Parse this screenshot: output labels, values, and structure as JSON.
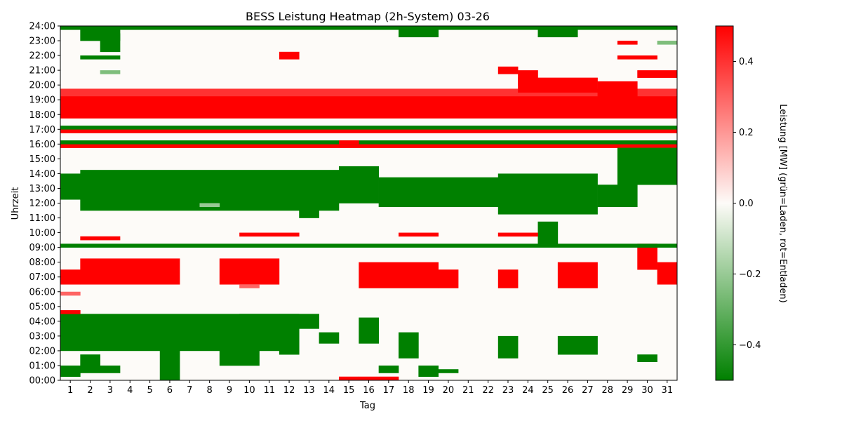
{
  "chart_data": {
    "type": "heatmap",
    "title": "BESS Leistung Heatmap (2h-System) 03-26",
    "xlabel": "Tag",
    "ylabel": "Uhrzeit",
    "colorbar_label": "Leistung [MW] (grün=Laden, rot=Entladen)",
    "x_categories": [
      "1",
      "2",
      "3",
      "4",
      "5",
      "6",
      "7",
      "8",
      "9",
      "10",
      "11",
      "12",
      "13",
      "14",
      "15",
      "16",
      "17",
      "18",
      "19",
      "20",
      "21",
      "22",
      "23",
      "24",
      "25",
      "26",
      "27",
      "28",
      "29",
      "30",
      "31"
    ],
    "y_ticks": [
      "00:00",
      "01:00",
      "02:00",
      "03:00",
      "04:00",
      "05:00",
      "06:00",
      "07:00",
      "08:00",
      "09:00",
      "10:00",
      "11:00",
      "12:00",
      "13:00",
      "14:00",
      "15:00",
      "16:00",
      "17:00",
      "18:00",
      "19:00",
      "20:00",
      "21:00",
      "22:00",
      "23:00",
      "24:00"
    ],
    "y_range_hours": [
      0,
      24
    ],
    "color_range": [
      -0.5,
      0.5
    ],
    "colorbar_ticks": [
      0.4,
      0.2,
      0.0,
      -0.2,
      -0.4
    ],
    "colorbar_tick_labels": [
      "0.4",
      "0.2",
      "0.0",
      "−0.2",
      "−0.4"
    ],
    "colors": {
      "charge": "#008000",
      "zero": "#fdfbf8",
      "discharge": "#ff0000"
    },
    "grid": false,
    "resolution_minutes": 15,
    "blocks": [
      {
        "d": [
          1,
          31
        ],
        "h": [
          17.75,
          19.25
        ],
        "v": 0.5
      },
      {
        "d": [
          2,
          6
        ],
        "h": [
          6.5,
          8.25
        ],
        "v": 0.5
      },
      {
        "d": [
          9,
          11
        ],
        "h": [
          6.5,
          8.25
        ],
        "v": 0.5
      },
      {
        "d": [
          16,
          19
        ],
        "h": [
          6.25,
          8.0
        ],
        "v": 0.5
      },
      {
        "d": [
          20,
          20
        ],
        "h": [
          6.25,
          7.5
        ],
        "v": 0.5
      },
      {
        "d": [
          1,
          1
        ],
        "h": [
          6.5,
          7.5
        ],
        "v": 0.5
      },
      {
        "d": [
          23,
          23
        ],
        "h": [
          6.25,
          7.5
        ],
        "v": 0.5
      },
      {
        "d": [
          26,
          27
        ],
        "h": [
          6.25,
          8.0
        ],
        "v": 0.5
      },
      {
        "d": [
          30,
          30
        ],
        "h": [
          7.5,
          9.25
        ],
        "v": 0.5
      },
      {
        "d": [
          31,
          31
        ],
        "h": [
          6.5,
          8.0
        ],
        "v": 0.5
      },
      {
        "d": [
          1,
          31
        ],
        "h": [
          15.75,
          16.0
        ],
        "v": 0.5
      },
      {
        "d": [
          1,
          31
        ],
        "h": [
          16.75,
          17.0
        ],
        "v": 0.5
      },
      {
        "d": [
          1,
          31
        ],
        "h": [
          19.25,
          19.75
        ],
        "v": 0.4
      },
      {
        "d": [
          1,
          12
        ],
        "h": [
          2.0,
          4.5
        ],
        "v": -0.5
      },
      {
        "d": [
          1,
          1
        ],
        "h": [
          12.25,
          14.0
        ],
        "v": -0.5
      },
      {
        "d": [
          2,
          14
        ],
        "h": [
          11.5,
          14.25
        ],
        "v": -0.5
      },
      {
        "d": [
          15,
          16
        ],
        "h": [
          12.0,
          14.5
        ],
        "v": -0.5
      },
      {
        "d": [
          17,
          22
        ],
        "h": [
          11.75,
          13.75
        ],
        "v": -0.5
      },
      {
        "d": [
          23,
          27
        ],
        "h": [
          11.25,
          14.0
        ],
        "v": -0.5
      },
      {
        "d": [
          28,
          29
        ],
        "h": [
          11.75,
          13.25
        ],
        "v": -0.5
      },
      {
        "d": [
          29,
          31
        ],
        "h": [
          13.25,
          15.75
        ],
        "v": -0.5
      },
      {
        "d": [
          1,
          31
        ],
        "h": [
          9.0,
          9.25
        ],
        "v": -0.5
      },
      {
        "d": [
          1,
          31
        ],
        "h": [
          16.0,
          16.25
        ],
        "v": -0.5
      },
      {
        "d": [
          1,
          31
        ],
        "h": [
          17.0,
          17.25
        ],
        "v": -0.5
      },
      {
        "d": [
          1,
          31
        ],
        "h": [
          23.75,
          24.0
        ],
        "v": -0.5
      },
      {
        "d": [
          2,
          3
        ],
        "h": [
          23.0,
          23.75
        ],
        "v": -0.5
      },
      {
        "d": [
          25,
          26
        ],
        "h": [
          23.25,
          24.0
        ],
        "v": -0.5
      },
      {
        "d": [
          18,
          19
        ],
        "h": [
          23.25,
          24.0
        ],
        "v": -0.5
      },
      {
        "d": [
          6,
          6
        ],
        "h": [
          0.0,
          2.0
        ],
        "v": -0.5
      },
      {
        "d": [
          2,
          2
        ],
        "h": [
          0.5,
          1.75
        ],
        "v": -0.5
      },
      {
        "d": [
          18,
          18
        ],
        "h": [
          1.5,
          3.25
        ],
        "v": -0.5
      },
      {
        "d": [
          23,
          23
        ],
        "h": [
          1.5,
          3.0
        ],
        "v": -0.5
      },
      {
        "d": [
          25,
          25
        ],
        "h": [
          9.25,
          10.75
        ],
        "v": -0.5
      },
      {
        "d": [
          24,
          24
        ],
        "h": [
          20.0,
          21.0
        ],
        "v": 0.5
      },
      {
        "d": [
          24,
          27
        ],
        "h": [
          19.5,
          20.5
        ],
        "v": 0.5
      },
      {
        "d": [
          28,
          29
        ],
        "h": [
          18.5,
          20.25
        ],
        "v": 0.5
      },
      {
        "d": [
          15,
          15
        ],
        "h": [
          0.0,
          0.25
        ],
        "v": 0.5
      },
      {
        "d": [
          16,
          17
        ],
        "h": [
          0.0,
          0.25
        ],
        "v": 0.5
      },
      {
        "d": [
          1,
          1
        ],
        "h": [
          4.5,
          4.75
        ],
        "v": 0.5
      },
      {
        "d": [
          2,
          3
        ],
        "h": [
          9.5,
          9.75
        ],
        "v": 0.5
      },
      {
        "d": [
          10,
          12
        ],
        "h": [
          9.75,
          10.0
        ],
        "v": 0.5
      },
      {
        "d": [
          18,
          19
        ],
        "h": [
          9.75,
          10.0
        ],
        "v": 0.5
      },
      {
        "d": [
          23,
          24
        ],
        "h": [
          9.75,
          10.0
        ],
        "v": 0.5
      },
      {
        "d": [
          9,
          10
        ],
        "h": [
          1.0,
          2.75
        ],
        "v": -0.5
      },
      {
        "d": [
          16,
          16
        ],
        "h": [
          2.5,
          4.25
        ],
        "v": -0.5
      },
      {
        "d": [
          10,
          11
        ],
        "h": [
          2.5,
          4.5
        ],
        "v": -0.5
      },
      {
        "d": [
          12,
          13
        ],
        "h": [
          3.5,
          4.5
        ],
        "v": -0.5
      },
      {
        "d": [
          14,
          14
        ],
        "h": [
          2.5,
          3.25
        ],
        "v": -0.5
      },
      {
        "d": [
          5,
          5
        ],
        "h": [
          2.75,
          3.75
        ],
        "v": -0.5
      },
      {
        "d": [
          30,
          30
        ],
        "h": [
          1.25,
          1.75
        ],
        "v": -0.5
      },
      {
        "d": [
          19,
          19
        ],
        "h": [
          0.25,
          1.0
        ],
        "v": -0.5
      },
      {
        "d": [
          3,
          3
        ],
        "h": [
          0.5,
          1.0
        ],
        "v": -0.5
      },
      {
        "d": [
          17,
          17
        ],
        "h": [
          0.5,
          1.0
        ],
        "v": -0.5
      },
      {
        "d": [
          26,
          27
        ],
        "h": [
          1.75,
          3.0
        ],
        "v": -0.5
      },
      {
        "d": [
          1,
          1
        ],
        "h": [
          0.25,
          1.0
        ],
        "v": -0.5
      },
      {
        "d": [
          13,
          13
        ],
        "h": [
          11.0,
          12.5
        ],
        "v": -0.5
      },
      {
        "d": [
          20,
          20
        ],
        "h": [
          0.5,
          0.75
        ],
        "v": -0.5
      },
      {
        "d": [
          8,
          8
        ],
        "h": [
          11.75,
          12.0
        ],
        "v": -0.2
      },
      {
        "d": [
          12,
          12
        ],
        "h": [
          1.75,
          2.0
        ],
        "v": -0.5
      },
      {
        "d": [
          3,
          3
        ],
        "h": [
          22.25,
          23.5
        ],
        "v": -0.5
      },
      {
        "d": [
          2,
          3
        ],
        "h": [
          21.75,
          22.0
        ],
        "v": -0.5
      },
      {
        "d": [
          12,
          12
        ],
        "h": [
          21.75,
          22.25
        ],
        "v": 0.5
      },
      {
        "d": [
          23,
          23
        ],
        "h": [
          20.75,
          21.25
        ],
        "v": 0.5
      },
      {
        "d": [
          29,
          30
        ],
        "h": [
          21.75,
          22.0
        ],
        "v": 0.5
      },
      {
        "d": [
          30,
          31
        ],
        "h": [
          20.5,
          21.0
        ],
        "v": 0.5
      },
      {
        "d": [
          29,
          29
        ],
        "h": [
          22.75,
          23.0
        ],
        "v": 0.5
      },
      {
        "d": [
          15,
          15
        ],
        "h": [
          16.0,
          16.25
        ],
        "v": 0.5
      },
      {
        "d": [
          1,
          1
        ],
        "h": [
          5.75,
          6.0
        ],
        "v": 0.3
      },
      {
        "d": [
          10,
          10
        ],
        "h": [
          6.25,
          6.5
        ],
        "v": 0.3
      },
      {
        "d": [
          3,
          3
        ],
        "h": [
          20.75,
          21.0
        ],
        "v": -0.25
      },
      {
        "d": [
          31,
          31
        ],
        "h": [
          22.75,
          23.0
        ],
        "v": -0.25
      }
    ]
  }
}
